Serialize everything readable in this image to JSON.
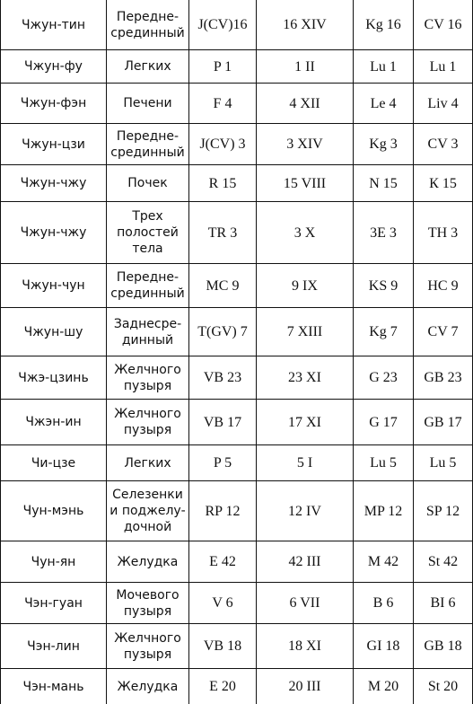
{
  "table": {
    "rows": [
      [
        "Чжун-тин",
        "Передне-\nсрединный",
        "J(CV)16",
        "16 XIV",
        "Kg 16",
        "CV 16"
      ],
      [
        "Чжун-фу",
        "Легких",
        "P 1",
        "1 II",
        "Lu 1",
        "Lu 1"
      ],
      [
        "Чжун-фэн",
        "Печени",
        "F 4",
        "4 XII",
        "Le 4",
        "Liv 4"
      ],
      [
        "Чжун-цзи",
        "Передне-\nсрединный",
        "J(CV) 3",
        "3 XIV",
        "Kg 3",
        "CV 3"
      ],
      [
        "Чжун-чжу",
        "Почек",
        "R 15",
        "15 VIII",
        "N 15",
        "К 15"
      ],
      [
        "Чжун-чжу",
        "Трех\nполостей\nтела",
        "TR 3",
        "3 X",
        "3Е 3",
        "TH 3"
      ],
      [
        "Чжун-чун",
        "Передне-\nсрединный",
        "MC 9",
        "9 IX",
        "KS 9",
        "HC 9"
      ],
      [
        "Чжун-шу",
        "Заднесре-\nдинный",
        "T(GV) 7",
        "7 XIII",
        "Kg 7",
        "CV 7"
      ],
      [
        "Чжэ-цзинь",
        "Желчного\nпузыря",
        "VB 23",
        "23 XI",
        "G 23",
        "GB 23"
      ],
      [
        "Чжэн-ин",
        "Желчного\nпузыря",
        "VB 17",
        "17 XI",
        "G 17",
        "GB 17"
      ],
      [
        "Чи-цзе",
        "Легких",
        "P 5",
        "5 I",
        "Lu 5",
        "Lu 5"
      ],
      [
        "Чун-мэнь",
        "Селезенки\nи поджелу-\nдочной",
        "RP 12",
        "12 IV",
        "MP 12",
        "SP 12"
      ],
      [
        "Чун-ян",
        "Желудка",
        "E 42",
        "42 III",
        "M 42",
        "St 42"
      ],
      [
        "Чэн-гуан",
        "Мочевого\nпузыря",
        "V 6",
        "6 VII",
        "B 6",
        "BI 6"
      ],
      [
        "Чэн-лин",
        "Желчного\nпузыря",
        "VB 18",
        "18 XI",
        "GI 18",
        "GB 18"
      ],
      [
        "Чэн-мань",
        "Желудка",
        "E 20",
        "20 III",
        "M 20",
        "St 20"
      ]
    ]
  }
}
